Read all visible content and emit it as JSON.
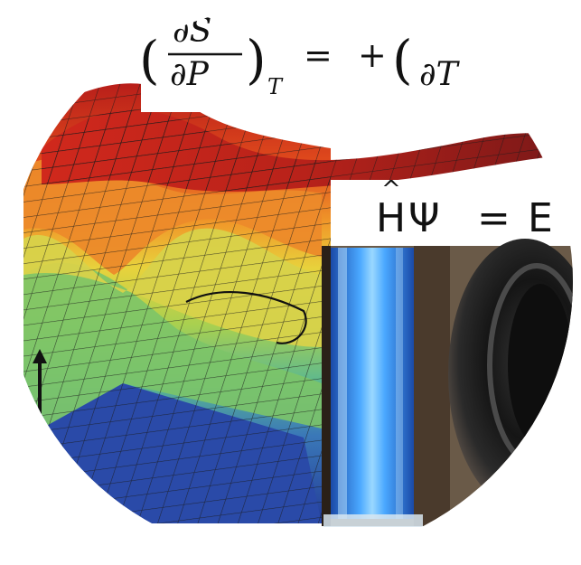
{
  "image": {
    "subject": "circular science-themed collage",
    "panels": [
      "3D potential energy surface plot",
      "thermodynamic Maxwell relation equation",
      "Schrödinger equation",
      "glowing blue liquid column",
      "dark mechanical component"
    ]
  },
  "equations": {
    "maxwell": {
      "left_numerator": "∂S",
      "left_denominator": "∂P",
      "left_subscript": "T",
      "equals": "=",
      "plus": "+",
      "right_partial": "∂T"
    },
    "schrodinger": {
      "hat": "^",
      "operator": "H",
      "psi": "Ψ",
      "equals": "=",
      "energy": "E"
    }
  },
  "colors": {
    "red": "#c8281e",
    "orange": "#e8701e",
    "yellow": "#e8d23c",
    "green": "#8cc850",
    "teal": "#4aa89a",
    "blue": "#2848a0",
    "glow": "#4aa8ff",
    "mesh": "#1a1a1a",
    "background": "#ffffff"
  }
}
